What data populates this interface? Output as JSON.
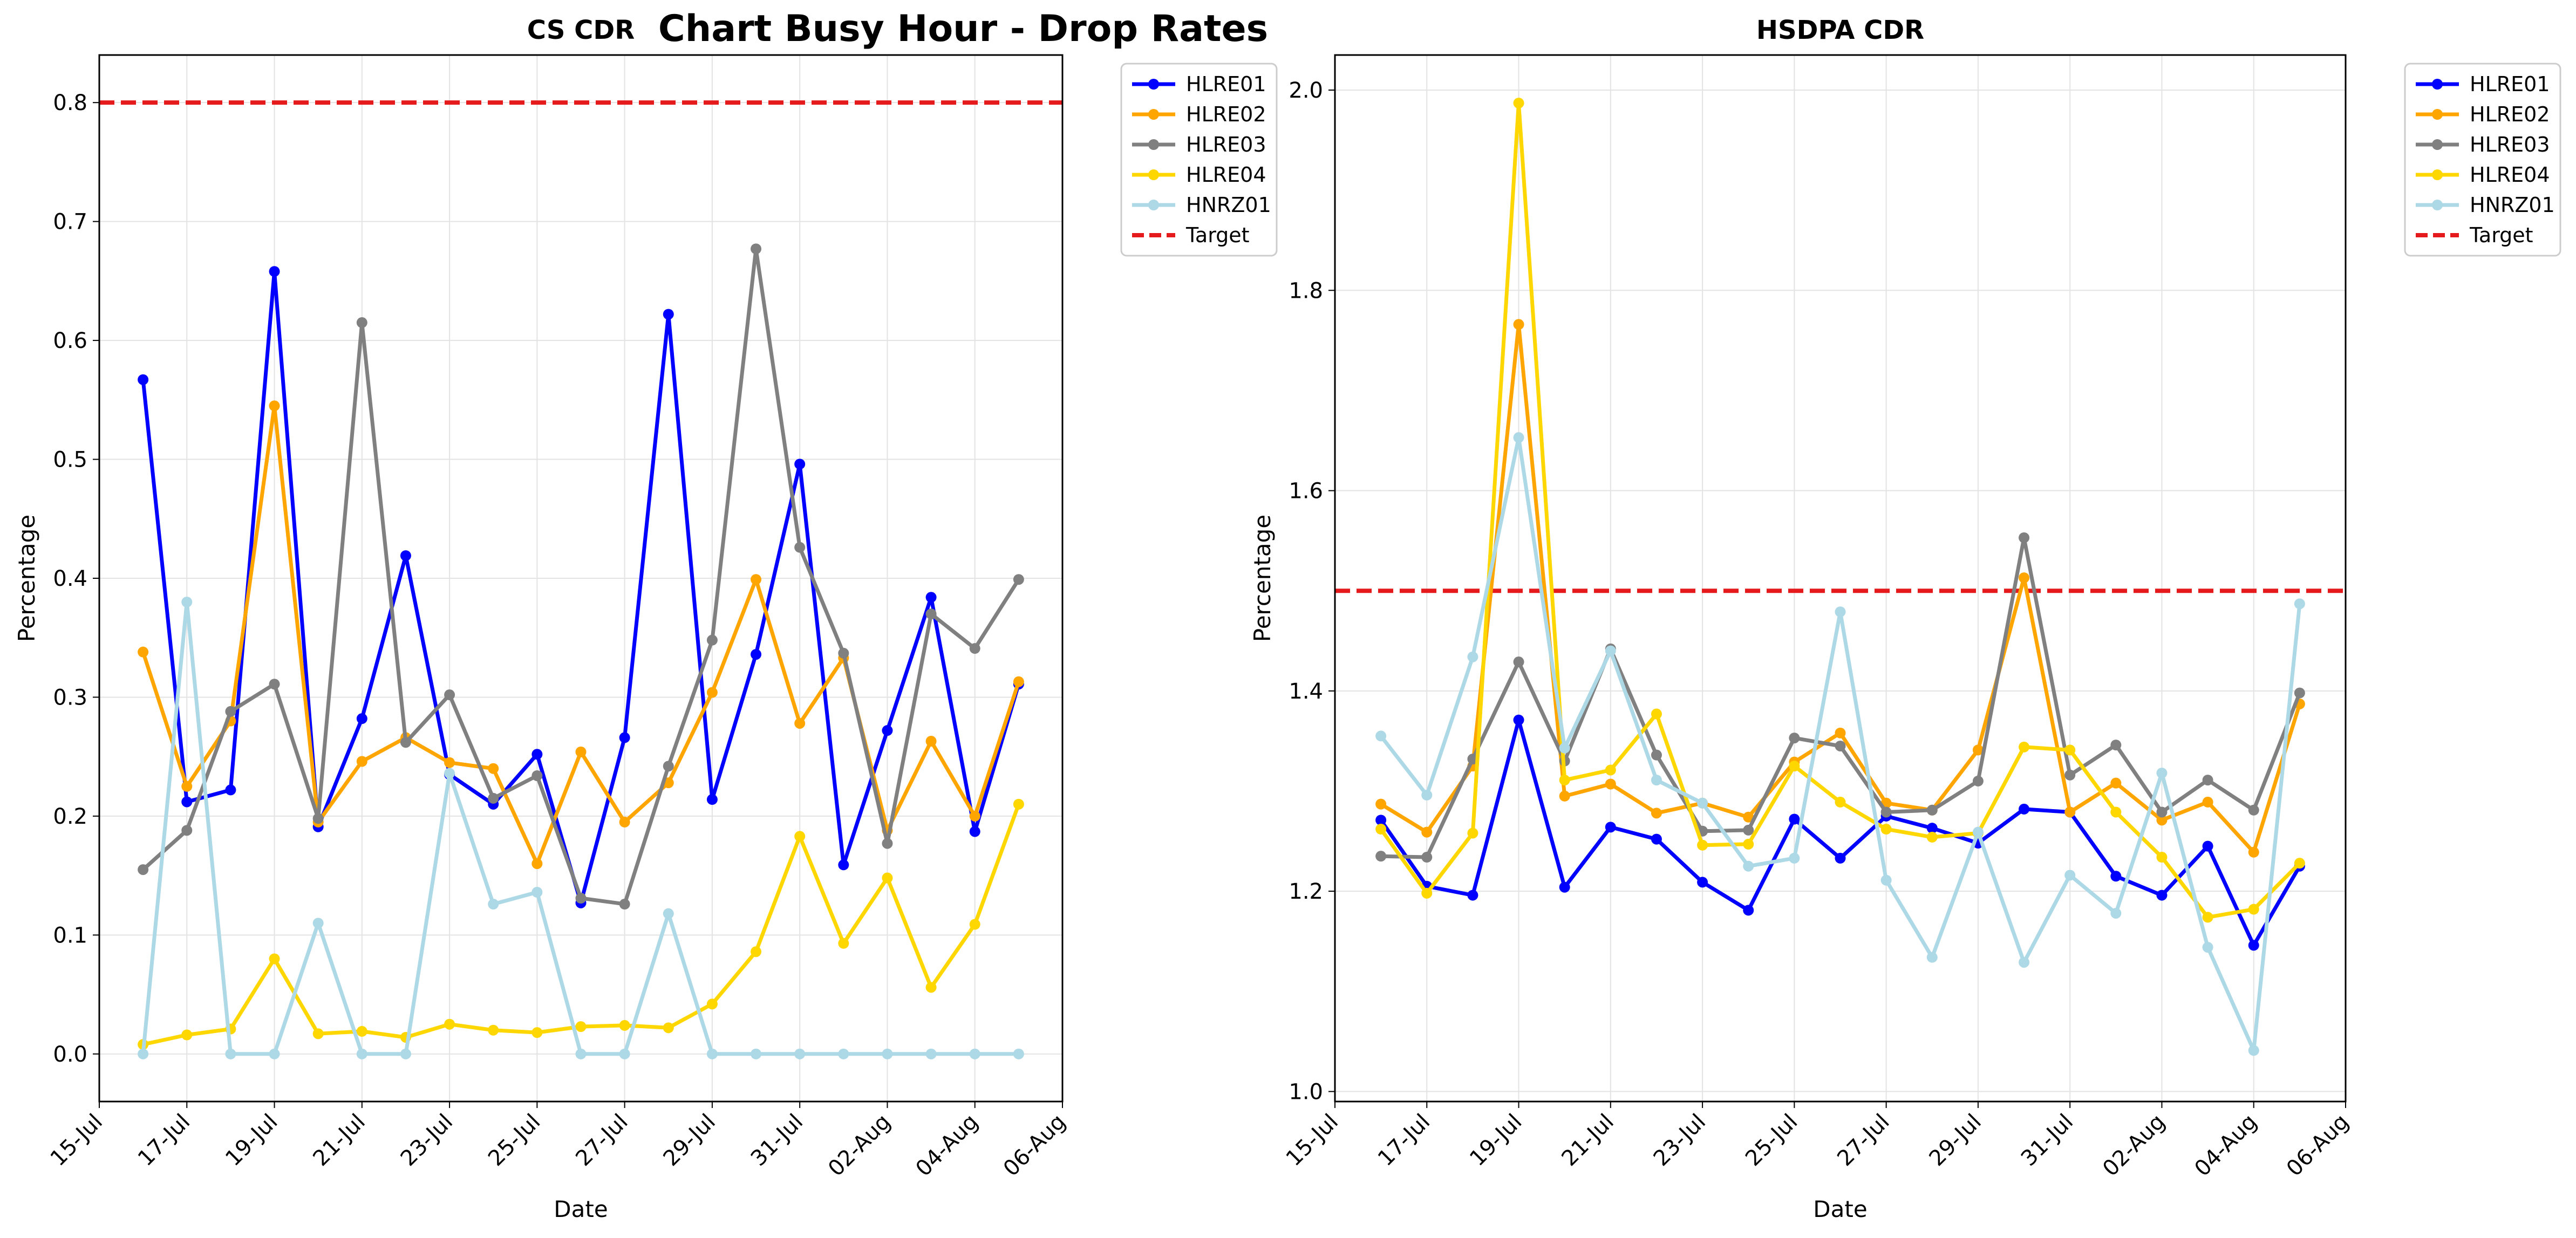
{
  "suptitle": "Chart Busy Hour - Drop Rates",
  "chart_data": [
    {
      "type": "line",
      "title": "CS CDR",
      "xlabel": "Date",
      "ylabel": "Percentage",
      "dates": [
        "2023-07-16",
        "2023-07-17",
        "2023-07-18",
        "2023-07-19",
        "2023-07-20",
        "2023-07-21",
        "2023-07-22",
        "2023-07-23",
        "2023-07-24",
        "2023-07-25",
        "2023-07-26",
        "2023-07-27",
        "2023-07-28",
        "2023-07-29",
        "2023-07-30",
        "2023-07-31",
        "2023-08-01",
        "2023-08-02",
        "2023-08-03",
        "2023-08-04",
        "2023-08-05"
      ],
      "xlim": [
        "2023-07-15",
        "2023-08-06"
      ],
      "xticks": [
        "15-Jul",
        "17-Jul",
        "19-Jul",
        "21-Jul",
        "23-Jul",
        "25-Jul",
        "27-Jul",
        "29-Jul",
        "31-Jul",
        "02-Aug",
        "04-Aug",
        "06-Aug"
      ],
      "ylim": [
        -0.04,
        0.84
      ],
      "yticks": [
        "0.0",
        "0.1",
        "0.2",
        "0.3",
        "0.4",
        "0.5",
        "0.6",
        "0.7",
        "0.8"
      ],
      "target": {
        "name": "Target",
        "value": 0.8,
        "color": "#e41a1c"
      },
      "legend_position": "upper left outside right",
      "grid": true,
      "series": [
        {
          "name": "HLRE01",
          "color": "#0000ff",
          "values": [
            0.567,
            0.212,
            0.222,
            0.658,
            0.191,
            0.282,
            0.419,
            0.235,
            0.21,
            0.252,
            0.127,
            0.266,
            0.622,
            0.214,
            0.336,
            0.496,
            0.159,
            0.272,
            0.384,
            0.187,
            0.311
          ]
        },
        {
          "name": "HLRE02",
          "color": "#ffa500",
          "values": [
            0.338,
            0.225,
            0.28,
            0.545,
            0.195,
            0.246,
            0.266,
            0.245,
            0.24,
            0.16,
            0.254,
            0.195,
            0.228,
            0.304,
            0.399,
            0.278,
            0.333,
            0.188,
            0.263,
            0.2,
            0.313
          ]
        },
        {
          "name": "HLRE03",
          "color": "#808080",
          "values": [
            0.155,
            0.188,
            0.288,
            0.311,
            0.198,
            0.615,
            0.262,
            0.302,
            0.215,
            0.234,
            0.131,
            0.126,
            0.242,
            0.348,
            0.677,
            0.426,
            0.337,
            0.177,
            0.37,
            0.341,
            0.399
          ]
        },
        {
          "name": "HLRE04",
          "color": "#ffd700",
          "values": [
            0.008,
            0.016,
            0.021,
            0.08,
            0.017,
            0.019,
            0.014,
            0.025,
            0.02,
            0.018,
            0.023,
            0.024,
            0.022,
            0.042,
            0.086,
            0.183,
            0.093,
            0.148,
            0.056,
            0.109,
            0.21
          ]
        },
        {
          "name": "HNRZ01",
          "color": "#add8e6",
          "values": [
            0.0,
            0.38,
            0.0,
            0.0,
            0.11,
            0.0,
            0.0,
            0.236,
            0.126,
            0.136,
            0.0,
            0.0,
            0.118,
            0.0,
            0.0,
            0.0,
            0.0,
            0.0,
            0.0,
            0.0,
            0.0
          ]
        }
      ]
    },
    {
      "type": "line",
      "title": "HSDPA CDR",
      "xlabel": "Date",
      "ylabel": "Percentage",
      "dates": [
        "2023-07-16",
        "2023-07-17",
        "2023-07-18",
        "2023-07-19",
        "2023-07-20",
        "2023-07-21",
        "2023-07-22",
        "2023-07-23",
        "2023-07-24",
        "2023-07-25",
        "2023-07-26",
        "2023-07-27",
        "2023-07-28",
        "2023-07-29",
        "2023-07-30",
        "2023-07-31",
        "2023-08-01",
        "2023-08-02",
        "2023-08-03",
        "2023-08-04",
        "2023-08-05"
      ],
      "xlim": [
        "2023-07-15",
        "2023-08-06"
      ],
      "xticks": [
        "15-Jul",
        "17-Jul",
        "19-Jul",
        "21-Jul",
        "23-Jul",
        "25-Jul",
        "27-Jul",
        "29-Jul",
        "31-Jul",
        "02-Aug",
        "04-Aug",
        "06-Aug"
      ],
      "ylim": [
        0.99,
        2.035
      ],
      "yticks": [
        "1.0",
        "1.2",
        "1.4",
        "1.6",
        "1.8",
        "2.0"
      ],
      "target": {
        "name": "Target",
        "value": 1.5,
        "color": "#e41a1c"
      },
      "legend_position": "upper left outside right",
      "grid": true,
      "series": [
        {
          "name": "HLRE01",
          "color": "#0000ff",
          "values": [
            1.271,
            1.205,
            1.196,
            1.371,
            1.204,
            1.264,
            1.252,
            1.209,
            1.181,
            1.272,
            1.233,
            1.275,
            1.263,
            1.248,
            1.282,
            1.279,
            1.215,
            1.196,
            1.245,
            1.146,
            1.225
          ]
        },
        {
          "name": "HLRE02",
          "color": "#ffa500",
          "values": [
            1.287,
            1.259,
            1.325,
            1.766,
            1.295,
            1.307,
            1.278,
            1.288,
            1.274,
            1.329,
            1.358,
            1.288,
            1.281,
            1.341,
            1.513,
            1.279,
            1.308,
            1.271,
            1.289,
            1.239,
            1.387
          ]
        },
        {
          "name": "HLRE03",
          "color": "#808080",
          "values": [
            1.235,
            1.234,
            1.332,
            1.429,
            1.33,
            1.442,
            1.336,
            1.26,
            1.261,
            1.353,
            1.345,
            1.279,
            1.281,
            1.31,
            1.553,
            1.316,
            1.346,
            1.279,
            1.311,
            1.281,
            1.398
          ]
        },
        {
          "name": "HLRE04",
          "color": "#ffd700",
          "values": [
            1.262,
            1.198,
            1.258,
            1.987,
            1.311,
            1.321,
            1.377,
            1.246,
            1.247,
            1.325,
            1.289,
            1.262,
            1.254,
            1.258,
            1.344,
            1.341,
            1.279,
            1.234,
            1.174,
            1.182,
            1.228
          ]
        },
        {
          "name": "HNRZ01",
          "color": "#add8e6",
          "values": [
            1.355,
            1.296,
            1.434,
            1.653,
            1.343,
            1.44,
            1.311,
            1.288,
            1.225,
            1.233,
            1.479,
            1.211,
            1.134,
            1.259,
            1.129,
            1.216,
            1.178,
            1.318,
            1.144,
            1.041,
            1.487
          ]
        }
      ]
    }
  ]
}
